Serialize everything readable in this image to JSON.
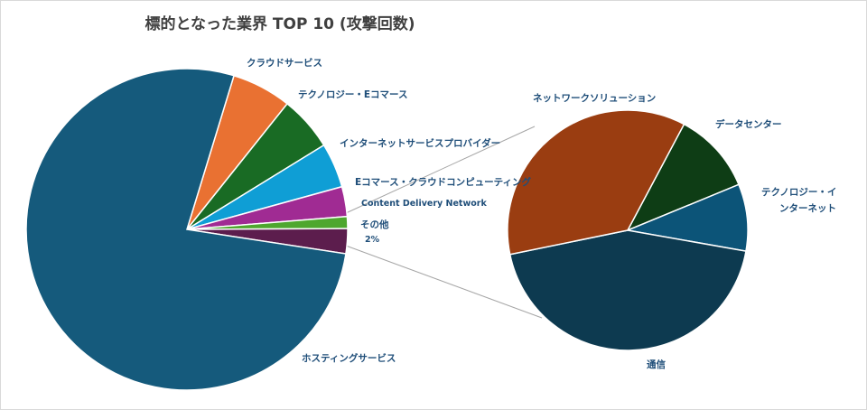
{
  "chart_data": {
    "type": "pie",
    "title": "標的となった業界 TOP 10 (攻撃回数)",
    "main": {
      "slices": [
        {
          "label": "クラウドサービス",
          "value": 6,
          "color": "#e97132"
        },
        {
          "label": "テクノロジー・Eコマース",
          "value": 5.5,
          "color": "#196b24"
        },
        {
          "label": "インターネットサービスプロバイダー",
          "value": 4.5,
          "color": "#0f9ed5"
        },
        {
          "label": "Eコマース・クラウドコンピューティング",
          "value": 3,
          "color": "#a02b93"
        },
        {
          "label": "Content Delivery Network",
          "value": 1.2,
          "color": "#4ea72e"
        },
        {
          "label": "その他",
          "value": 2.5,
          "color": "#5c1d4d",
          "data_label": "2%"
        },
        {
          "label": "ホスティングサービス",
          "value": 77.3,
          "color": "#155a7c"
        }
      ]
    },
    "detail": {
      "slices": [
        {
          "label": "データセンター",
          "value": 11,
          "color": "#0e3d15"
        },
        {
          "label": "テクノロジー・インターネット",
          "value": 9,
          "color": "#0c5478"
        },
        {
          "label": "通信",
          "value": 44,
          "color": "#0d3a50"
        },
        {
          "label": "ネットワークソリューション",
          "value": 36,
          "color": "#9a3d11"
        }
      ]
    }
  }
}
